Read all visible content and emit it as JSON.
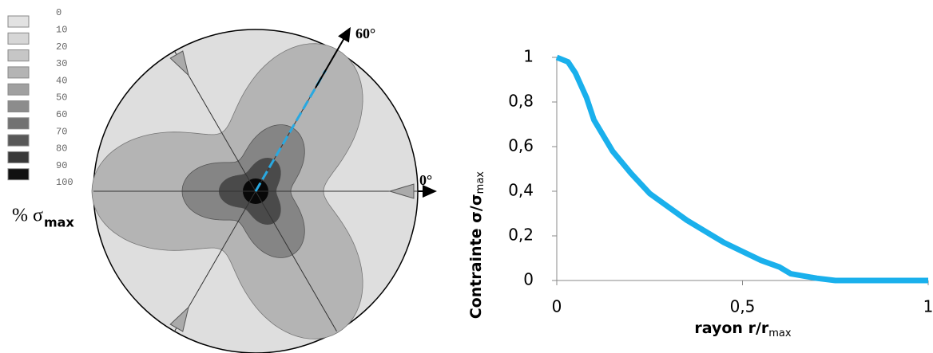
{
  "diagram": {
    "legend_labels": [
      0,
      10,
      20,
      30,
      40,
      50,
      60,
      70,
      80,
      90,
      100
    ],
    "legend_colors": [
      "#e2e2e2",
      "#d6d6d6",
      "#c6c6c6",
      "#b4b4b4",
      "#a0a0a0",
      "#8c8c8c",
      "#727272",
      "#585858",
      "#383838",
      "#111111"
    ],
    "legend_title": "% σ",
    "legend_title_sub": "max",
    "angle_60": "60°",
    "angle_0": "0°"
  },
  "chart_data": {
    "type": "line",
    "y_label": "Contrainte σ/σ",
    "y_label_sub": "max",
    "x_label": "rayon r/r",
    "x_label_sub": "max",
    "x": [
      0,
      0.03,
      0.05,
      0.08,
      0.1,
      0.15,
      0.2,
      0.25,
      0.3,
      0.35,
      0.4,
      0.45,
      0.5,
      0.55,
      0.6,
      0.63,
      0.7,
      0.75,
      0.8,
      0.9,
      1
    ],
    "series": [
      {
        "name": "Contrainte",
        "color": "#1ab0ec",
        "values": [
          1,
          0.98,
          0.93,
          0.82,
          0.72,
          0.58,
          0.48,
          0.39,
          0.33,
          0.27,
          0.22,
          0.17,
          0.13,
          0.09,
          0.06,
          0.03,
          0.01,
          0,
          0,
          0,
          0
        ]
      }
    ],
    "xlim": [
      0,
      1
    ],
    "xticks": [
      0,
      {
        "value": 0.5,
        "label": "0,5"
      },
      1
    ],
    "ylim": [
      0,
      1
    ],
    "yticks": [
      0,
      {
        "value": 0.2,
        "label": "0,2"
      },
      {
        "value": 0.4,
        "label": "0,4"
      },
      {
        "value": 0.6,
        "label": "0,6"
      },
      {
        "value": 0.8,
        "label": "0,8"
      },
      1
    ],
    "grid": false
  }
}
